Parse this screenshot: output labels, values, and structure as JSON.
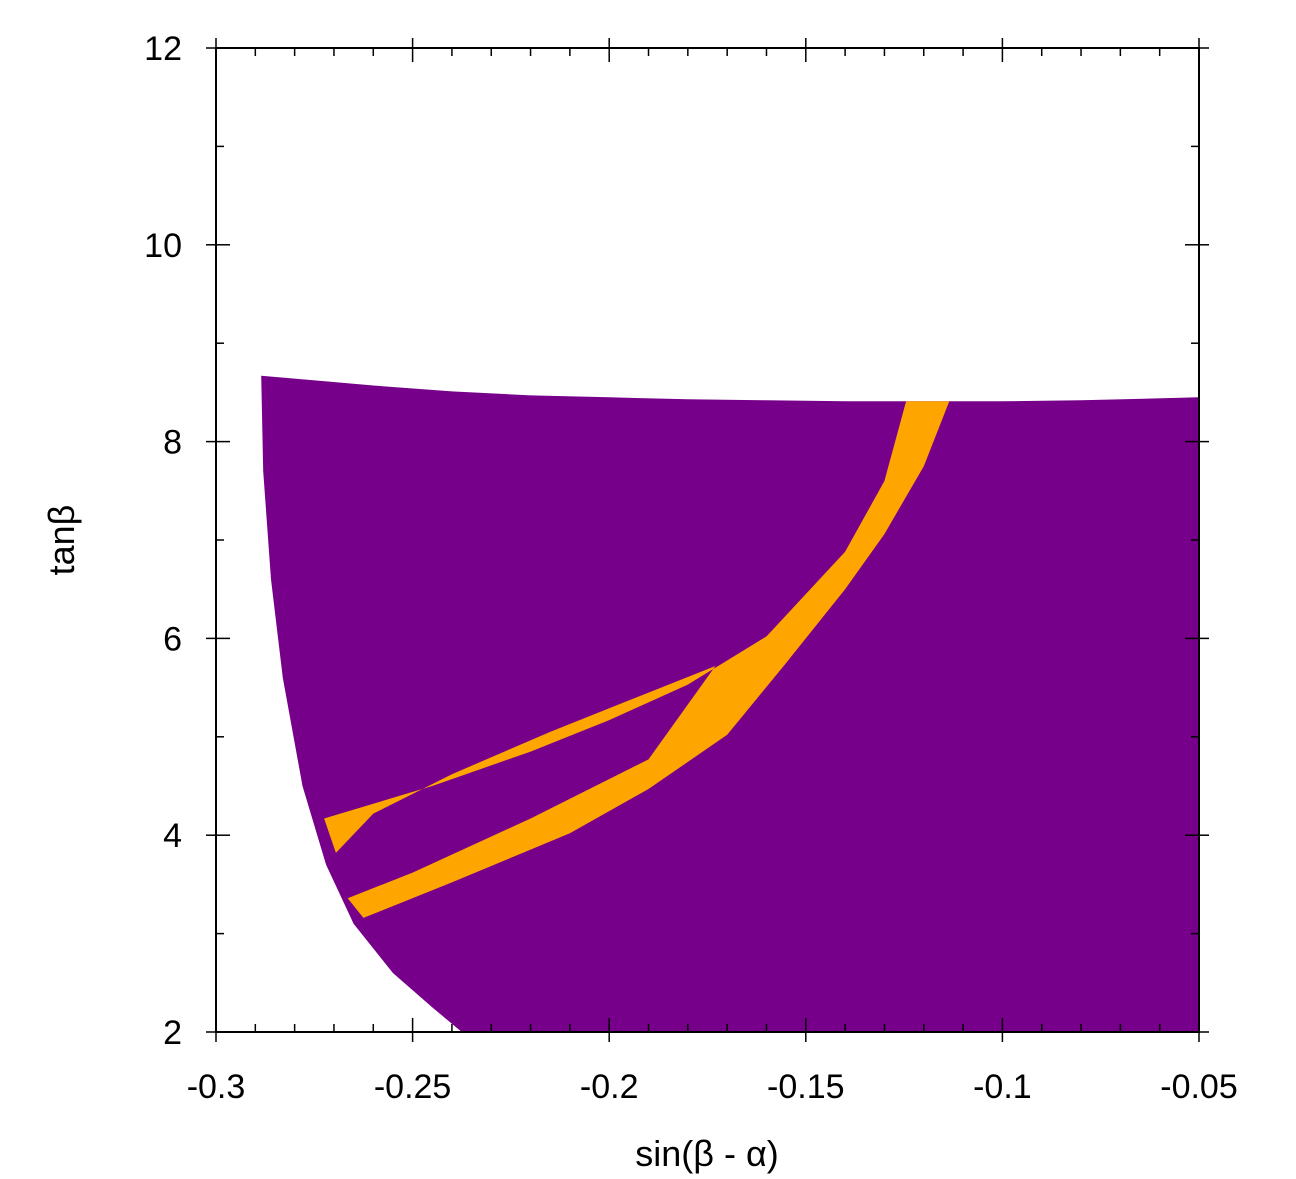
{
  "chart_data": {
    "type": "area",
    "xlabel": "sin(β - α)",
    "ylabel": "tanβ",
    "xlim": [
      -0.3,
      -0.05
    ],
    "ylim": [
      2,
      12
    ],
    "x_ticks": [
      "-0.3",
      "-0.25",
      "-0.2",
      "-0.15",
      "-0.1",
      "-0.05"
    ],
    "y_ticks": [
      "2",
      "4",
      "6",
      "8",
      "10",
      "12"
    ],
    "x_tick_values": [
      -0.3,
      -0.25,
      -0.2,
      -0.15,
      -0.1,
      -0.05
    ],
    "y_tick_values": [
      2,
      4,
      6,
      8,
      10,
      12
    ],
    "grid": false,
    "legend": "none",
    "colors": {
      "region_purple": "#760089",
      "region_orange": "#ffa500"
    },
    "regions": [
      {
        "color_key": "region_purple",
        "points": [
          [
            -0.2885,
            8.67
          ],
          [
            -0.28,
            8.64
          ],
          [
            -0.26,
            8.57
          ],
          [
            -0.24,
            8.51
          ],
          [
            -0.22,
            8.47
          ],
          [
            -0.2,
            8.45
          ],
          [
            -0.18,
            8.43
          ],
          [
            -0.16,
            8.42
          ],
          [
            -0.14,
            8.41
          ],
          [
            -0.12,
            8.41
          ],
          [
            -0.1,
            8.41
          ],
          [
            -0.08,
            8.42
          ],
          [
            -0.05,
            8.45
          ],
          [
            -0.05,
            2.0
          ],
          [
            -0.2375,
            2.0
          ],
          [
            -0.245,
            2.25
          ],
          [
            -0.255,
            2.6
          ],
          [
            -0.265,
            3.1
          ],
          [
            -0.272,
            3.7
          ],
          [
            -0.278,
            4.5
          ],
          [
            -0.283,
            5.6
          ],
          [
            -0.286,
            6.6
          ],
          [
            -0.288,
            7.7
          ],
          [
            -0.2885,
            8.67
          ]
        ]
      },
      {
        "color_key": "region_orange",
        "points": [
          [
            -0.2725,
            4.17
          ],
          [
            -0.245,
            4.5
          ],
          [
            -0.22,
            4.85
          ],
          [
            -0.2,
            5.17
          ],
          [
            -0.18,
            5.53
          ],
          [
            -0.16,
            6.02
          ],
          [
            -0.14,
            6.88
          ],
          [
            -0.13,
            7.6
          ],
          [
            -0.1245,
            8.41
          ],
          [
            -0.1135,
            8.41
          ],
          [
            -0.12,
            7.75
          ],
          [
            -0.13,
            7.06
          ],
          [
            -0.14,
            6.5
          ],
          [
            -0.155,
            5.75
          ],
          [
            -0.17,
            5.02
          ],
          [
            -0.19,
            4.47
          ],
          [
            -0.21,
            4.02
          ],
          [
            -0.24,
            3.52
          ],
          [
            -0.2625,
            3.16
          ],
          [
            -0.2665,
            3.36
          ],
          [
            -0.25,
            3.62
          ],
          [
            -0.22,
            4.17
          ],
          [
            -0.19,
            4.77
          ],
          [
            -0.173,
            5.72
          ],
          [
            -0.195,
            5.37
          ],
          [
            -0.215,
            5.05
          ],
          [
            -0.24,
            4.62
          ],
          [
            -0.26,
            4.22
          ],
          [
            -0.2695,
            3.82
          ]
        ]
      }
    ]
  }
}
